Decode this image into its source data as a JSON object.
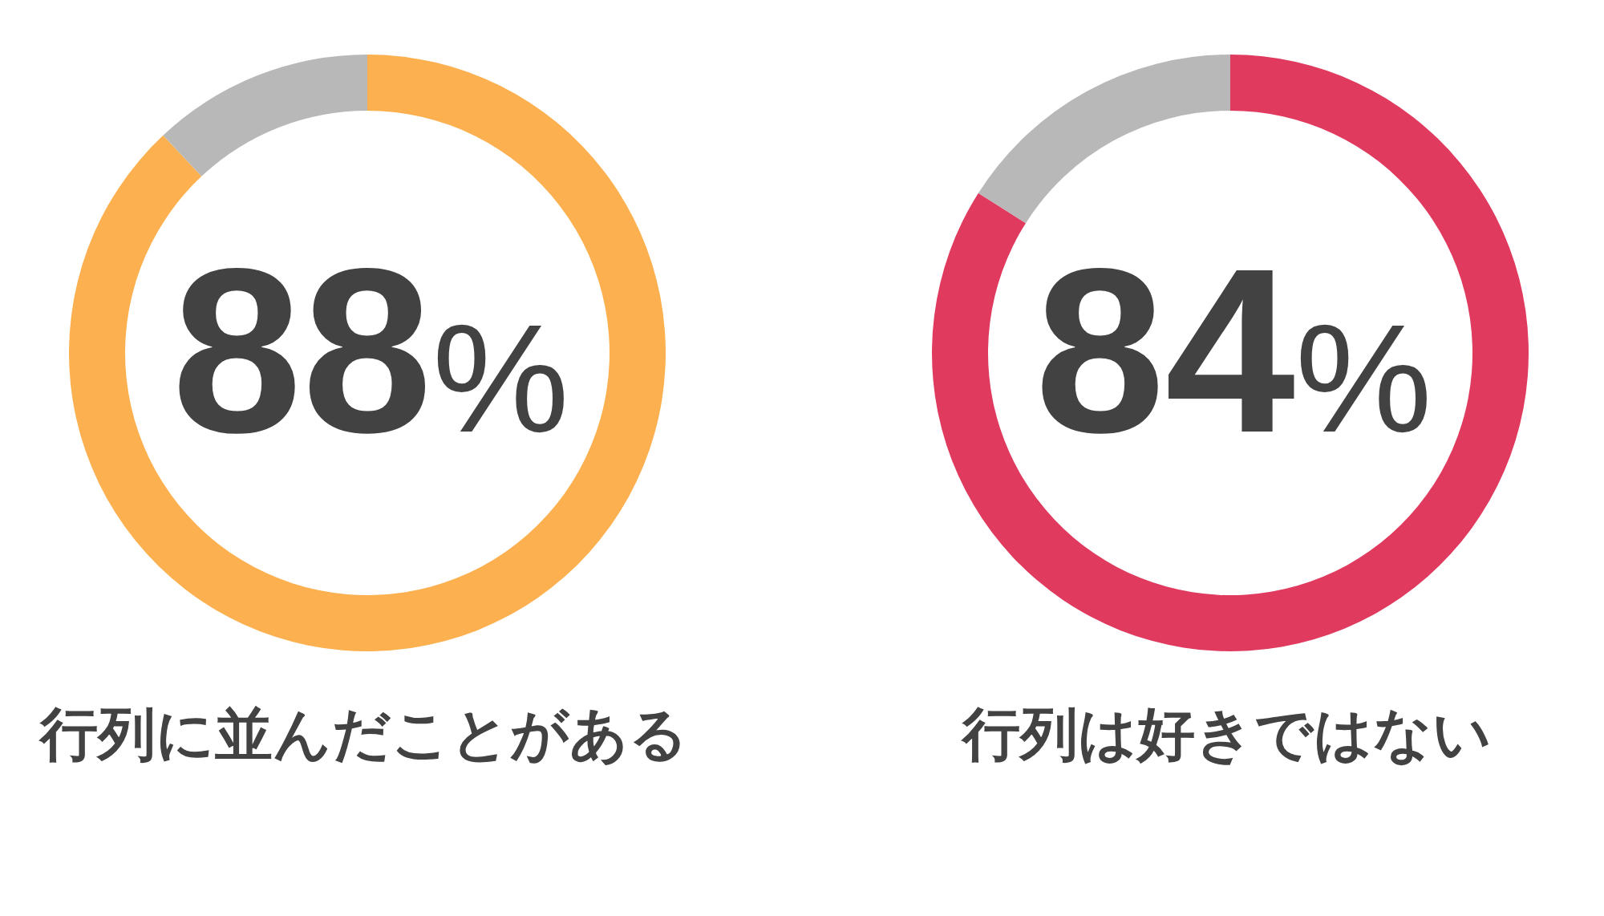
{
  "chart_data": [
    {
      "type": "donut",
      "title": "行列に並んだことがある",
      "categories": [
        null,
        null
      ],
      "values": [
        88,
        12
      ],
      "colors": [
        "#fcb04f",
        "#b8b8b8"
      ],
      "value_labels": [
        "88%",
        null
      ]
    },
    {
      "type": "donut",
      "title": "行列は好きではない",
      "categories": [
        null,
        null
      ],
      "values": [
        84,
        16
      ],
      "colors": [
        "#e03a5f",
        "#b8b8b8"
      ],
      "value_labels": [
        "84%",
        null
      ]
    }
  ]
}
